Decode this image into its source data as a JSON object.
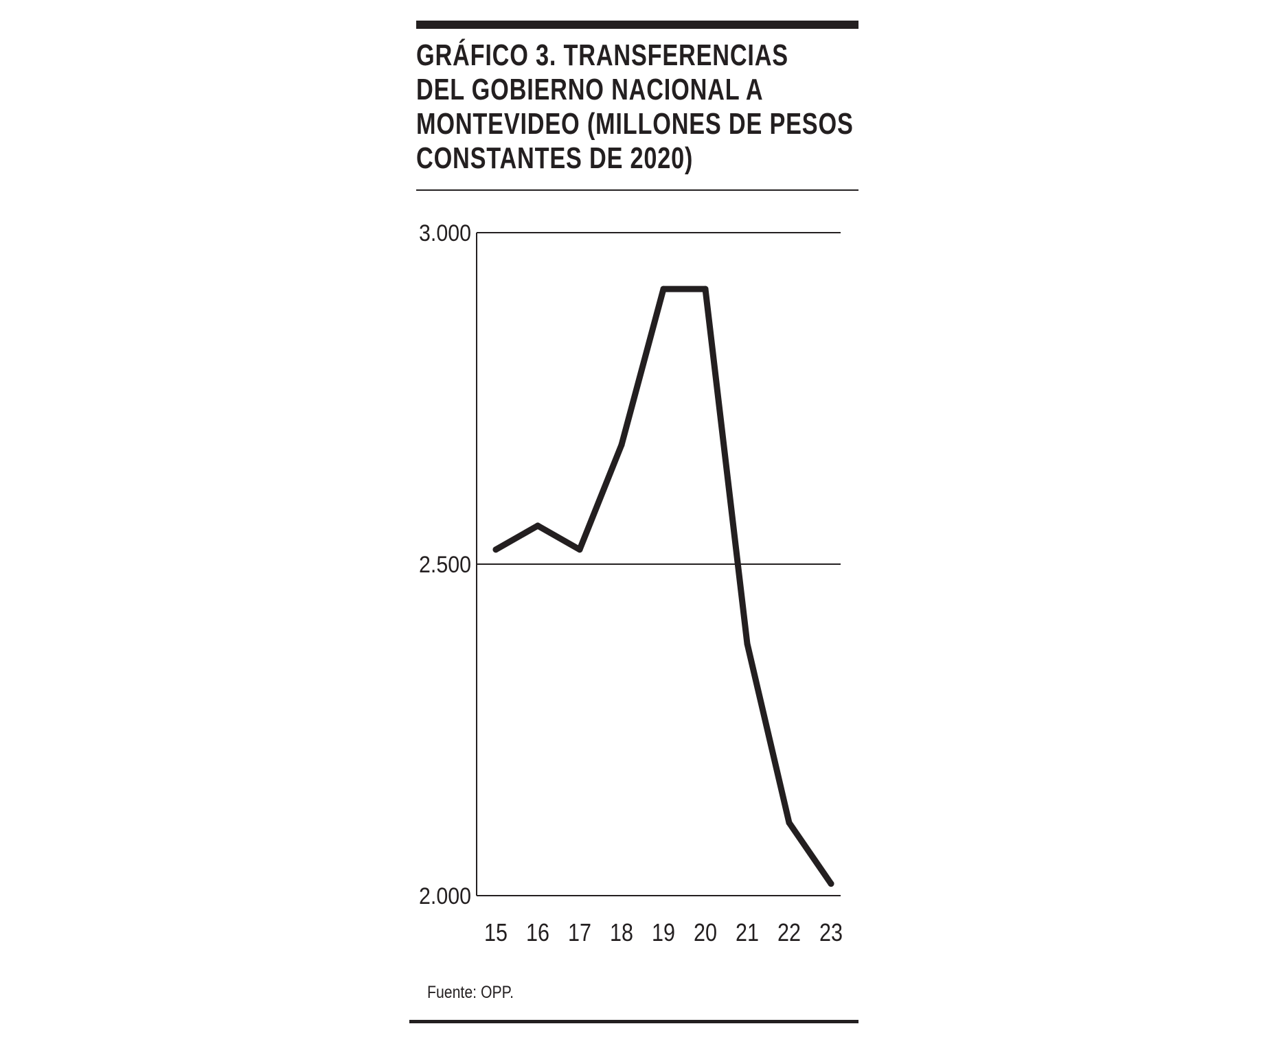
{
  "colors": {
    "ink": "#231f20",
    "background": "#ffffff"
  },
  "chart_data": {
    "type": "line",
    "title_lines": [
      "GRÁFICO 3. TRANSFERENCIAS",
      "DEL GOBIERNO NACIONAL A",
      "MONTEVIDEO (MILLONES DE PESOS",
      "CONSTANTES DE 2020)"
    ],
    "x": [
      "15",
      "16",
      "17",
      "18",
      "19",
      "20",
      "21",
      "22",
      "23"
    ],
    "series": [
      {
        "values": [
          2522,
          2558,
          2522,
          2680,
          2915,
          2915,
          2380,
          2110,
          2018
        ]
      }
    ],
    "ylim": [
      2000,
      3000
    ],
    "yticks": [
      2000,
      2500,
      3000
    ],
    "ytick_labels": [
      "2.000",
      "2.500",
      "3.000"
    ],
    "grid": "horizontal",
    "legend": "none",
    "source": "Fuente: OPP."
  }
}
